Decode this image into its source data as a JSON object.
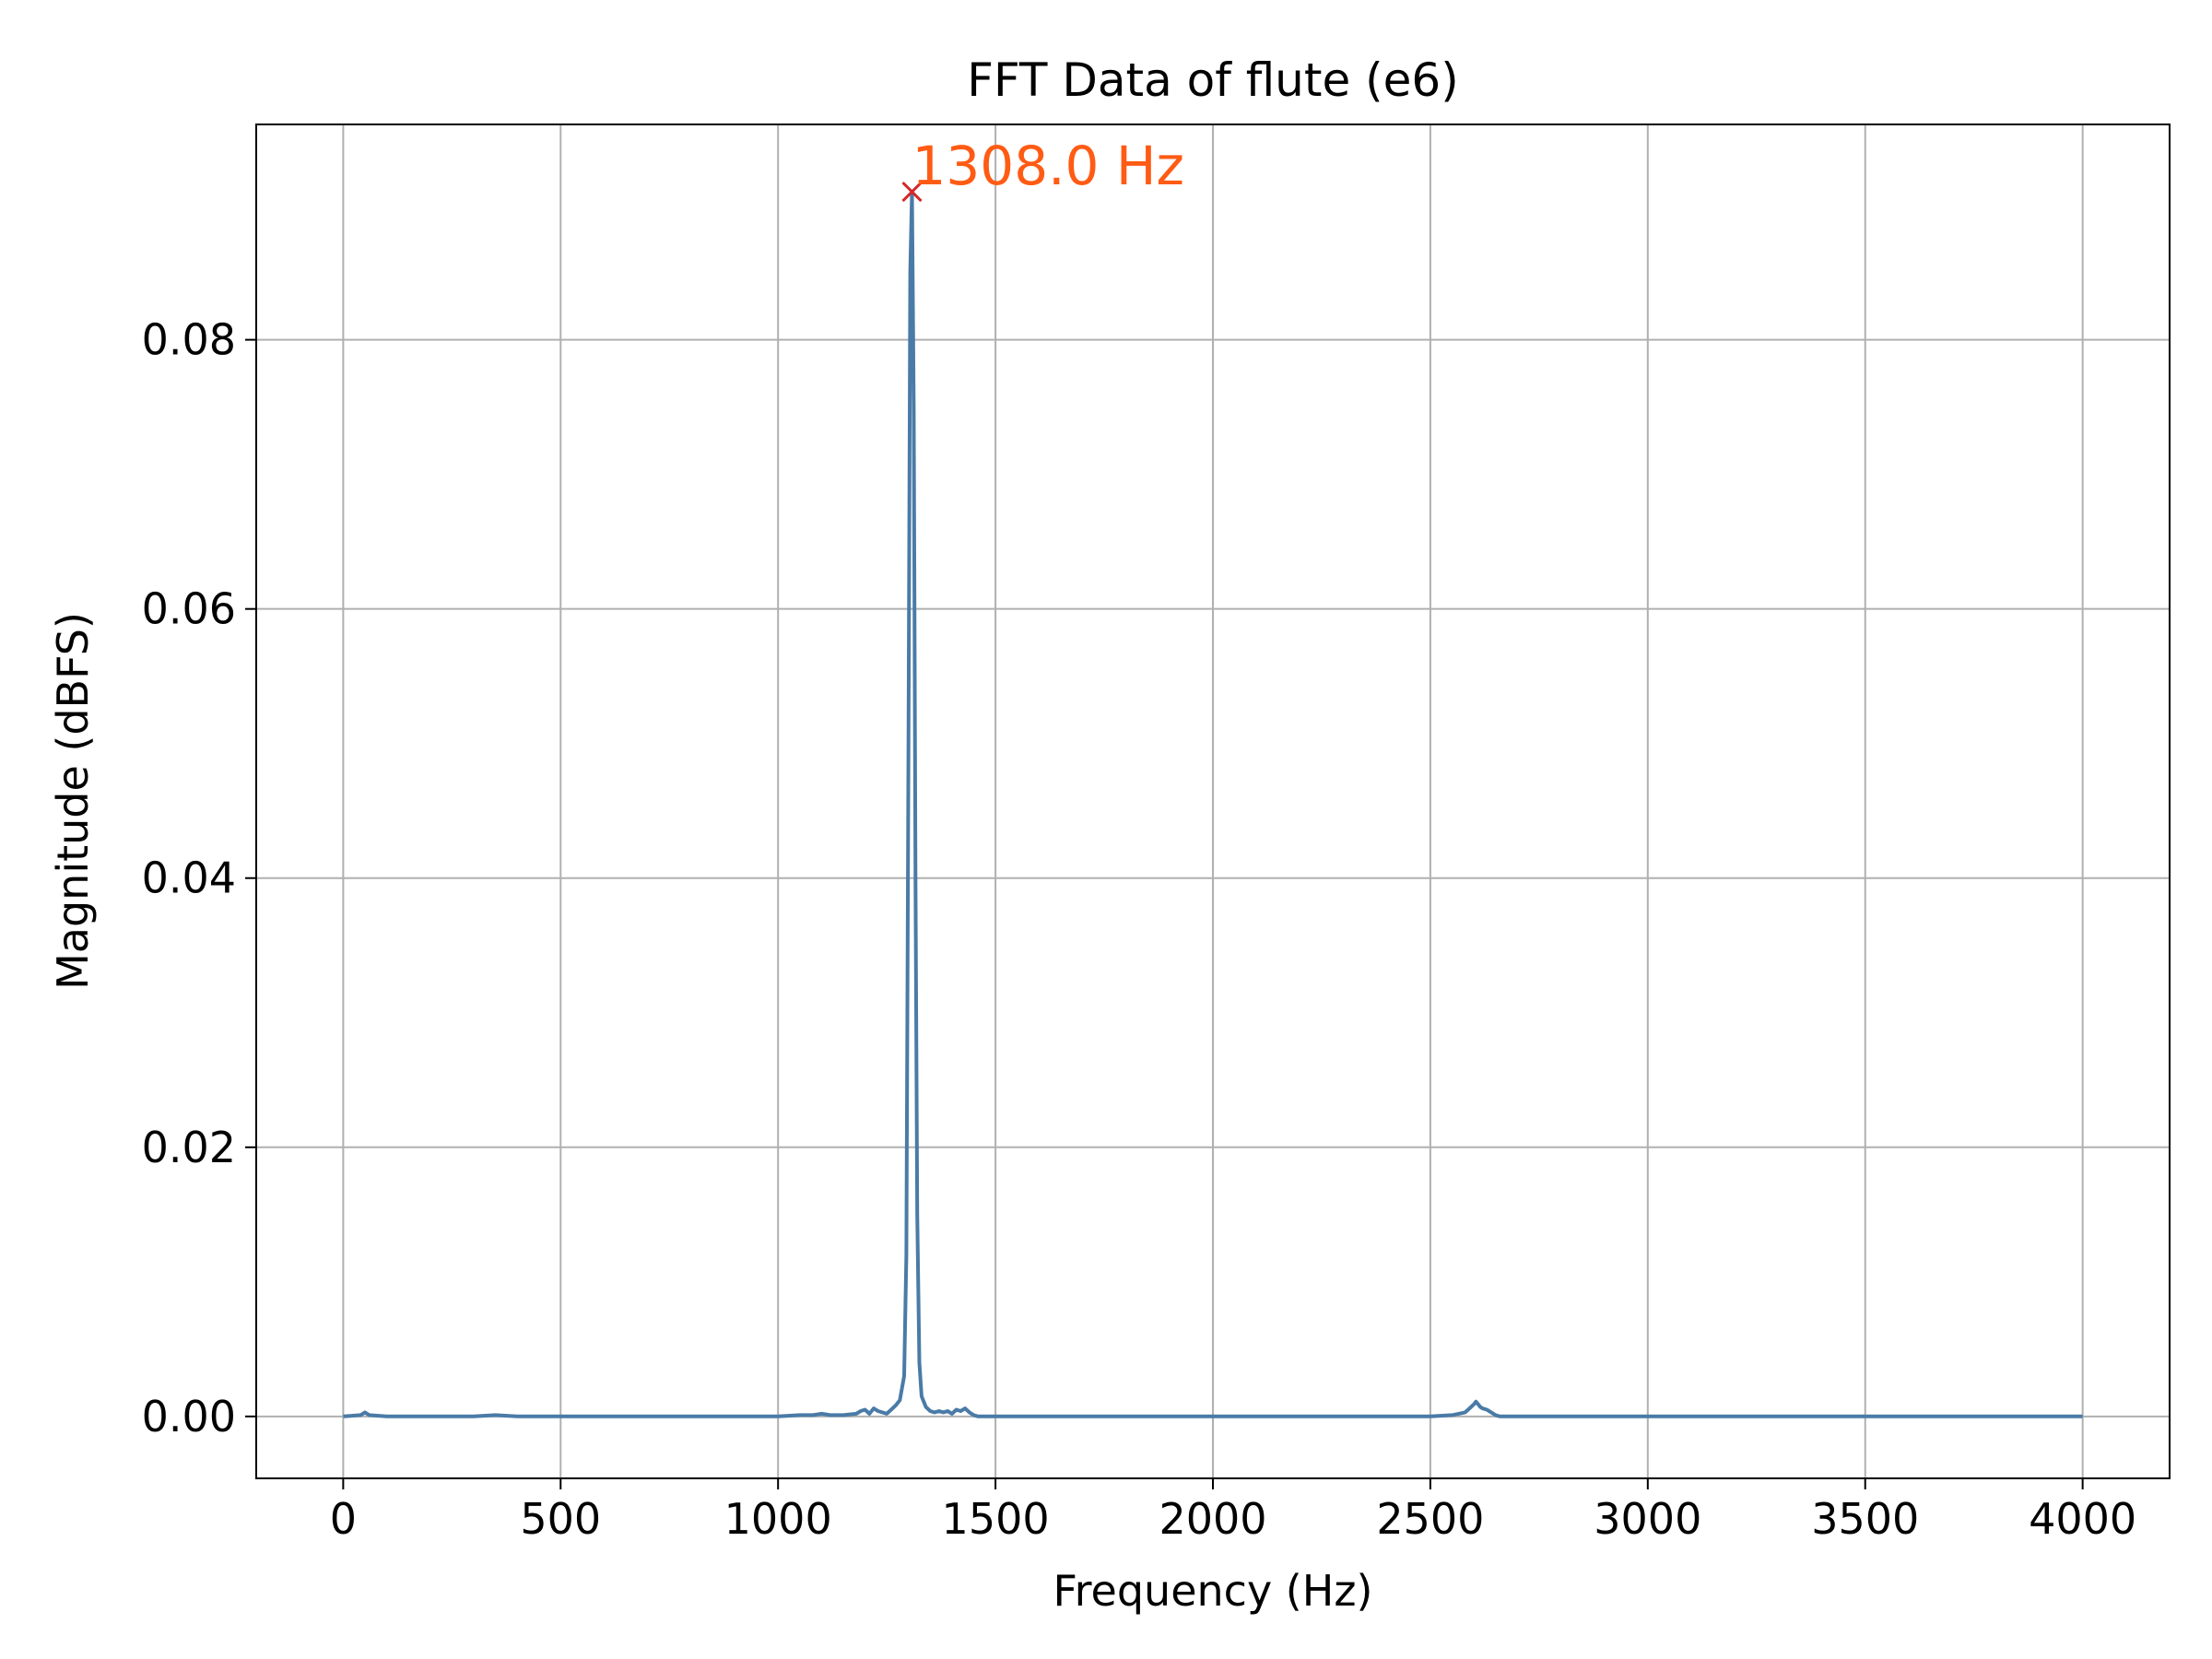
{
  "chart_data": {
    "type": "line",
    "title": "FFT Data of flute (e6)",
    "xlabel": "Frequency (Hz)",
    "ylabel": "Magnitude (dBFS)",
    "xlim": [
      -200,
      4200
    ],
    "ylim": [
      -0.0046,
      0.096
    ],
    "xticks": [
      0,
      500,
      1000,
      1500,
      2000,
      2500,
      3000,
      3500,
      4000
    ],
    "xtick_labels": [
      "0",
      "500",
      "1000",
      "1500",
      "2000",
      "2500",
      "3000",
      "3500",
      "4000"
    ],
    "yticks": [
      0.0,
      0.02,
      0.04,
      0.06,
      0.08
    ],
    "ytick_labels": [
      "0.00",
      "0.02",
      "0.04",
      "0.06",
      "0.08"
    ],
    "grid": true,
    "series": [
      {
        "color": "#4a7ba7",
        "x": [
          0,
          40,
          50,
          60,
          100,
          200,
          300,
          350,
          400,
          500,
          600,
          700,
          800,
          900,
          1000,
          1050,
          1080,
          1100,
          1120,
          1150,
          1180,
          1190,
          1200,
          1210,
          1220,
          1230,
          1240,
          1250,
          1260,
          1270,
          1280,
          1290,
          1295,
          1300,
          1304,
          1308,
          1312,
          1316,
          1320,
          1325,
          1330,
          1340,
          1350,
          1360,
          1370,
          1380,
          1390,
          1400,
          1410,
          1420,
          1430,
          1440,
          1450,
          1460,
          1480,
          1500,
          1600,
          1800,
          2000,
          2200,
          2400,
          2500,
          2550,
          2580,
          2590,
          2600,
          2605,
          2610,
          2615,
          2620,
          2630,
          2640,
          2650,
          2660,
          2700,
          2800,
          3000,
          3200,
          3500,
          3800,
          4000
        ],
        "y": [
          0.0,
          0.0001,
          0.0003,
          0.0001,
          0.0,
          0.0,
          0.0,
          0.0001,
          0.0,
          0.0,
          0.0,
          0.0,
          0.0,
          0.0,
          0.0,
          0.0001,
          0.0001,
          0.0002,
          0.0001,
          0.0001,
          0.0002,
          0.0004,
          0.0005,
          0.0002,
          0.0006,
          0.0004,
          0.0003,
          0.0002,
          0.0005,
          0.0008,
          0.0012,
          0.003,
          0.012,
          0.05,
          0.085,
          0.091,
          0.075,
          0.04,
          0.015,
          0.004,
          0.0015,
          0.0007,
          0.0004,
          0.0003,
          0.0004,
          0.0003,
          0.0004,
          0.0002,
          0.0005,
          0.0004,
          0.0006,
          0.0003,
          0.0001,
          0.0,
          0.0,
          0.0,
          0.0,
          0.0,
          0.0,
          0.0,
          0.0,
          0.0,
          0.0001,
          0.0003,
          0.0006,
          0.0009,
          0.0011,
          0.0009,
          0.0007,
          0.0006,
          0.0005,
          0.0003,
          0.0001,
          0.0,
          0.0,
          0.0,
          0.0,
          0.0,
          0.0,
          0.0,
          0.0
        ]
      }
    ],
    "peak": {
      "x": 1308.0,
      "y": 0.091,
      "label": "1308.0 Hz",
      "marker_color": "#d62728",
      "label_color": "#ff5b14"
    }
  }
}
